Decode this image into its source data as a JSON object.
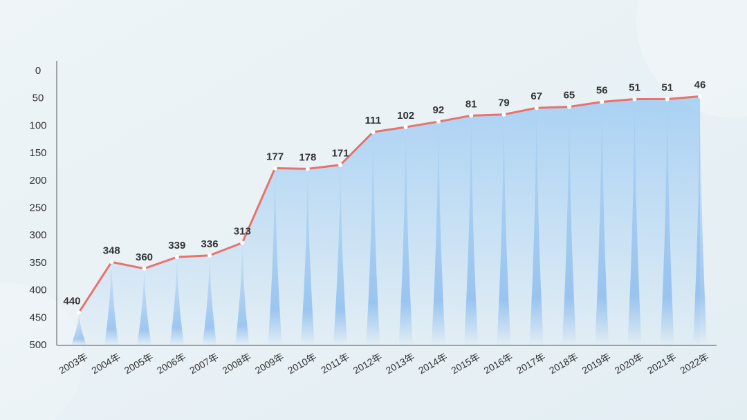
{
  "chart_data": {
    "type": "line",
    "categories": [
      "2003年",
      "2004年",
      "2005年",
      "2006年",
      "2007年",
      "2008年",
      "2009年",
      "2010年",
      "2011年",
      "2012年",
      "2013年",
      "2014年",
      "2015年",
      "2016年",
      "2017年",
      "2018年",
      "2019年",
      "2020年",
      "2021年",
      "2022年"
    ],
    "series": [
      {
        "color": "#ea726c",
        "values": [
          440,
          348,
          360,
          339,
          336,
          313,
          177,
          178,
          171,
          111,
          102,
          92,
          81,
          79,
          67,
          65,
          56,
          51,
          51,
          46
        ]
      }
    ],
    "ylim": [
      0,
      500
    ],
    "yticks": [
      0,
      50,
      100,
      150,
      200,
      250,
      300,
      350,
      400,
      450,
      500
    ],
    "y_inverted": true,
    "area_color": "#7fbcf2"
  }
}
